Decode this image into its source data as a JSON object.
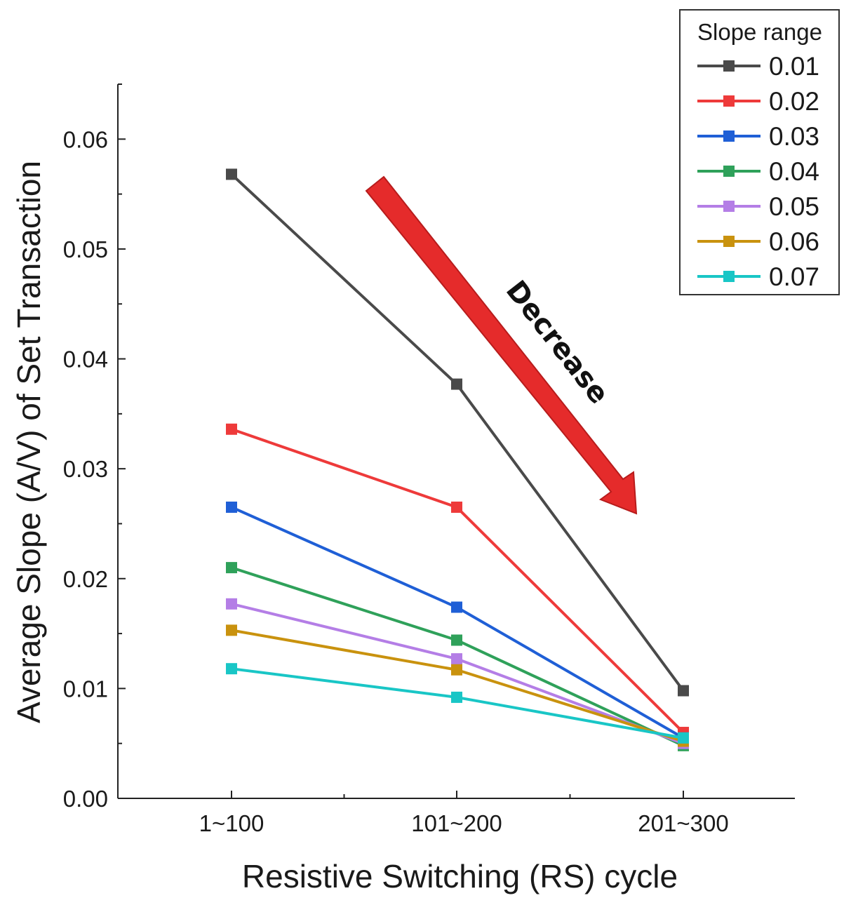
{
  "chart_data": {
    "type": "line",
    "title": "",
    "xlabel": "Resistive Switching (RS) cycle",
    "ylabel": "Average Slope (A/V) of  Set Transaction",
    "categories": [
      "1~100",
      "101~200",
      "201~300"
    ],
    "ylim": [
      0,
      0.065
    ],
    "yticks": [
      "0.00",
      "0.01",
      "0.02",
      "0.03",
      "0.04",
      "0.05",
      "0.06"
    ],
    "ytick_values": [
      0,
      0.01,
      0.02,
      0.03,
      0.04,
      0.05,
      0.06
    ],
    "grid": false,
    "legend": {
      "title": "Slope range",
      "position": "top-right"
    },
    "series": [
      {
        "name": "0.01",
        "color": "#4a4a4a",
        "values": [
          0.0568,
          0.0377,
          0.0098
        ]
      },
      {
        "name": "0.02",
        "color": "#ee3a3a",
        "values": [
          0.0336,
          0.0265,
          0.006
        ]
      },
      {
        "name": "0.03",
        "color": "#1f5fd6",
        "values": [
          0.0265,
          0.0174,
          0.0055
        ]
      },
      {
        "name": "0.04",
        "color": "#2fa15a",
        "values": [
          0.021,
          0.0144,
          0.0048
        ]
      },
      {
        "name": "0.05",
        "color": "#b47ee6",
        "values": [
          0.0177,
          0.0127,
          0.005
        ]
      },
      {
        "name": "0.06",
        "color": "#c9920e",
        "values": [
          0.0153,
          0.0117,
          0.0052
        ]
      },
      {
        "name": "0.07",
        "color": "#19c6c6",
        "values": [
          0.0118,
          0.0092,
          0.0055
        ]
      }
    ],
    "annotations": [
      {
        "text": "Decrease",
        "color": "#e52b2b"
      }
    ]
  }
}
